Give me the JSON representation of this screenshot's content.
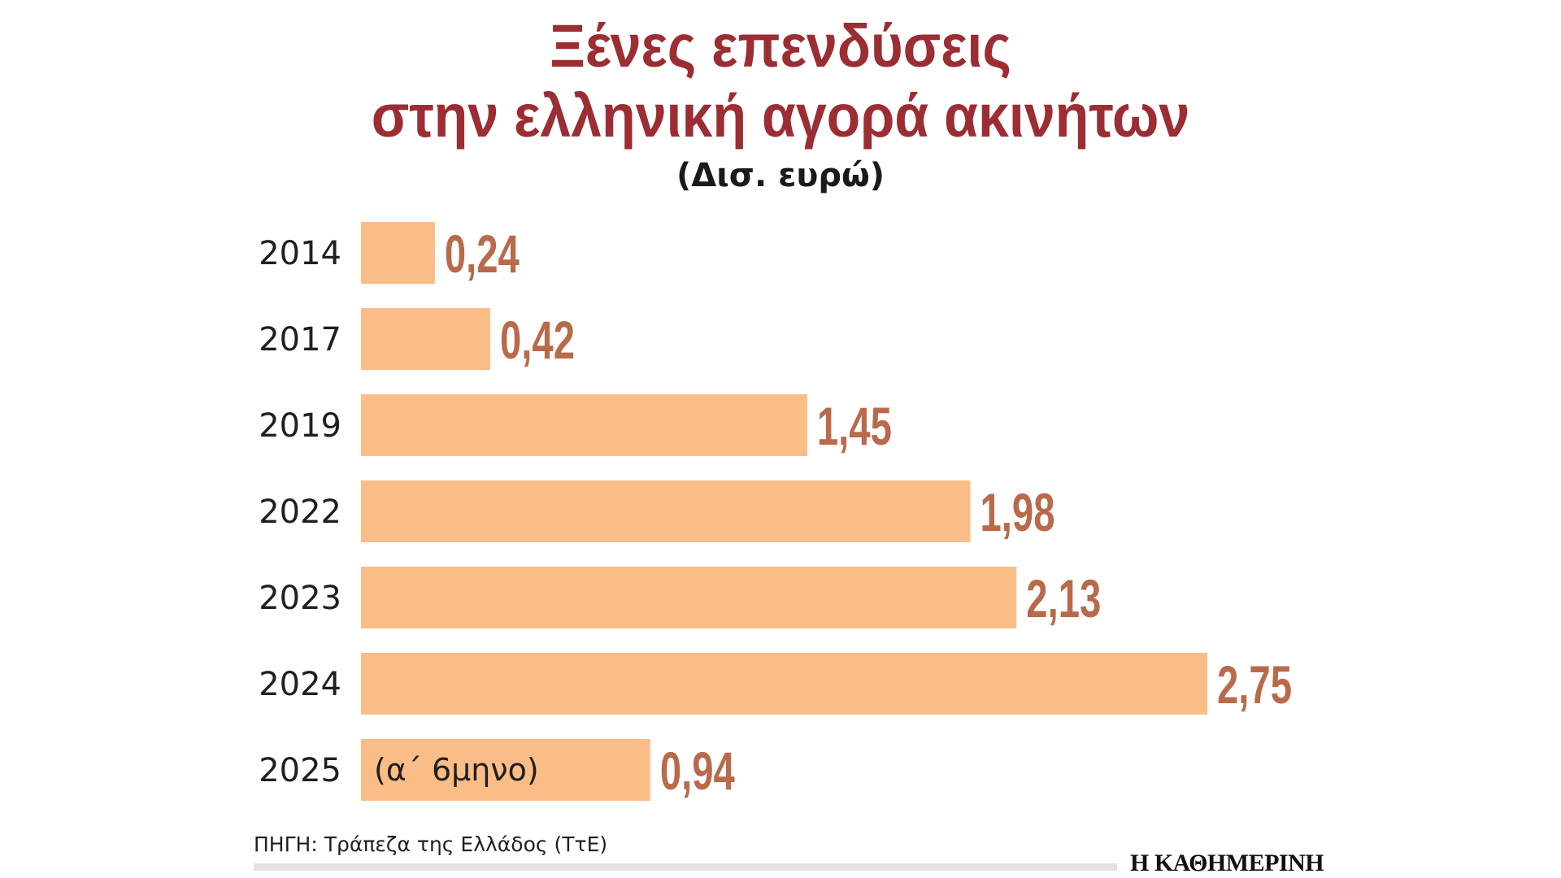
{
  "chart_data": {
    "type": "bar",
    "orientation": "horizontal",
    "title_line1": "Ξένες επενδύσεις",
    "title_line2": "στην ελληνική αγορά ακινήτων",
    "subtitle": "(Δισ. ευρώ)",
    "categories": [
      "2014",
      "2017",
      "2019",
      "2022",
      "2023",
      "2024",
      "2025"
    ],
    "values": [
      0.24,
      0.42,
      1.45,
      1.98,
      2.13,
      2.75,
      0.94
    ],
    "value_labels": [
      "0,24",
      "0,42",
      "1,45",
      "1,98",
      "2,13",
      "2,75",
      "0,94"
    ],
    "annotations": [
      {
        "category": "2025",
        "text": "(α΄ 6μηνο)"
      }
    ],
    "xlim": [
      0,
      2.75
    ],
    "grid": false,
    "legend": "none",
    "bar_color": "#fbbd87",
    "value_label_color": "#b86a4b",
    "title_color": "#9b2d33"
  },
  "footer": {
    "source": "ΠΗΓΗ: Τράπεζα της Ελλάδος (ΤτΕ)",
    "brand": "Η ΚΑΘΗΜΕΡΙΝΗ"
  }
}
